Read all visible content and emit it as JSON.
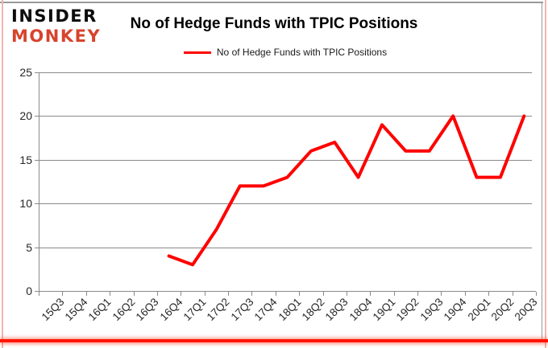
{
  "logo": {
    "line1": "INSIDER",
    "line2": "MONKEY",
    "brand_color": "#d8432c"
  },
  "title": "No of Hedge Funds with TPIC Positions",
  "legend": {
    "label": "No of Hedge Funds with TPIC Positions",
    "line_color": "#ff0000"
  },
  "chart_data": {
    "type": "line",
    "title": "No of Hedge Funds with TPIC Positions",
    "xlabel": "",
    "ylabel": "",
    "categories": [
      "15Q3",
      "15Q4",
      "16Q1",
      "16Q2",
      "16Q3",
      "16Q4",
      "17Q1",
      "17Q2",
      "17Q3",
      "17Q4",
      "18Q1",
      "18Q2",
      "18Q3",
      "18Q4",
      "19Q1",
      "19Q2",
      "19Q3",
      "19Q4",
      "20Q1",
      "20Q2",
      "20Q3"
    ],
    "series": [
      {
        "name": "No of Hedge Funds with TPIC Positions",
        "color": "#ff0000",
        "values": [
          null,
          null,
          null,
          null,
          null,
          4,
          3,
          7,
          12,
          12,
          13,
          16,
          17,
          13,
          19,
          16,
          16,
          20,
          13,
          13,
          20
        ]
      }
    ],
    "ylim": [
      0,
      25
    ],
    "yticks": [
      0,
      5,
      10,
      15,
      20,
      25
    ],
    "grid": true,
    "legend_position": "top"
  },
  "colors": {
    "grid": "#8a8a8a",
    "axis_text": "#262626",
    "frame_red": "#ff1500",
    "frame_pink": "#f2b4ae",
    "frame_gray": "#999999",
    "background": "#ffffff"
  }
}
